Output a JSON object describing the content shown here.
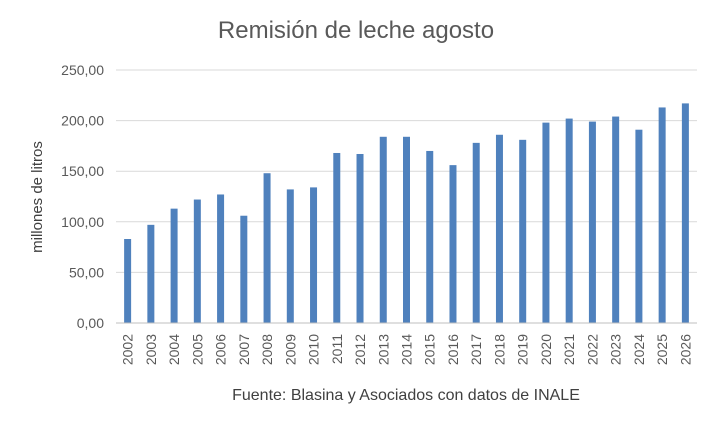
{
  "chart_data": {
    "type": "bar",
    "title": "Remisión de leche agosto",
    "ylabel": "millones de litros",
    "xlabel": "",
    "source": "Fuente: Blasina y Asociados con datos de INALE",
    "ylim": [
      0,
      250
    ],
    "yticks": [
      "0,00",
      "50,00",
      "100,00",
      "150,00",
      "200,00",
      "250,00"
    ],
    "grid": true,
    "legend": "none",
    "bar_color": "#4f81bd",
    "categories": [
      "2002",
      "2003",
      "2004",
      "2005",
      "2006",
      "2007",
      "2008",
      "2009",
      "2010",
      "2011",
      "2012",
      "2013",
      "2014",
      "2015",
      "2016",
      "2017",
      "2018",
      "2019",
      "2020",
      "2021",
      "2022",
      "2023",
      "2024",
      "2025",
      "2026"
    ],
    "values": [
      83,
      97,
      113,
      122,
      127,
      106,
      148,
      132,
      134,
      168,
      167,
      184,
      184,
      170,
      156,
      178,
      186,
      181,
      198,
      202,
      199,
      204,
      191,
      213,
      217
    ]
  }
}
